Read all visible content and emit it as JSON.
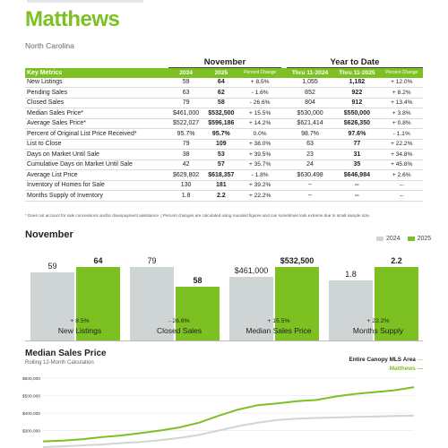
{
  "header": {
    "title": "Matthews",
    "subtitle": "North Carolina"
  },
  "table": {
    "group_month": "November",
    "group_ytd": "Year to Date",
    "col_metric": "Key Metrics",
    "col_2024": "2024",
    "col_2025": "2025",
    "col_pct": "Percent Change",
    "col_thru24": "Thru 11-2024",
    "col_thru25": "Thru 11-2025",
    "col_pct2": "Percent Change",
    "rows": [
      {
        "label": "New Listings",
        "m24": "59",
        "m25": "64",
        "mp": "+ 8.5%",
        "y24": "1,055",
        "y25": "1,182",
        "yp": "+ 12.0%"
      },
      {
        "label": "Pending Sales",
        "m24": "63",
        "m25": "62",
        "mp": "- 1.6%",
        "y24": "852",
        "y25": "922",
        "yp": "+ 8.2%"
      },
      {
        "label": "Closed Sales",
        "m24": "79",
        "m25": "58",
        "mp": "- 26.6%",
        "y24": "804",
        "y25": "912",
        "yp": "+ 13.4%"
      },
      {
        "label": "Median Sales Price*",
        "m24": "$461,000",
        "m25": "$532,500",
        "mp": "+ 15.5%",
        "y24": "$530,000",
        "y25": "$550,000",
        "yp": "+ 3.8%"
      },
      {
        "label": "Average Sales Price*",
        "m24": "$522,027",
        "m25": "$596,186",
        "mp": "+ 14.2%",
        "y24": "$621,414",
        "y25": "$626,350",
        "yp": "+ 0.8%"
      },
      {
        "label": "Percent of Original List Price Received*",
        "m24": "95.7%",
        "m25": "95.7%",
        "mp": "0.0%",
        "y24": "98.7%",
        "y25": "97.6%",
        "yp": "- 1.1%"
      },
      {
        "label": "List to Close",
        "m24": "79",
        "m25": "109",
        "mp": "+ 38.0%",
        "y24": "63",
        "y25": "77",
        "yp": "+ 22.2%"
      },
      {
        "label": "Days on Market Until Sale",
        "m24": "38",
        "m25": "53",
        "mp": "+ 39.5%",
        "y24": "23",
        "y25": "31",
        "yp": "+ 34.8%"
      },
      {
        "label": "Cumulative Days on Market Until Sale",
        "m24": "42",
        "m25": "57",
        "mp": "+ 35.7%",
        "y24": "24",
        "y25": "35",
        "yp": "+ 45.8%"
      },
      {
        "label": "Average List Price",
        "m24": "$629,802",
        "m25": "$618,357",
        "mp": "- 1.8%",
        "y24": "$630,498",
        "y25": "$646,984",
        "yp": "+ 2.6%"
      },
      {
        "label": "Inventory of Homes for Sale",
        "m24": "130",
        "m25": "181",
        "mp": "+ 39.2%",
        "y24": "--",
        "y25": "--",
        "yp": "--"
      },
      {
        "label": "Months Supply of Inventory",
        "m24": "1.8",
        "m25": "2.2",
        "mp": "+ 22.2%",
        "y24": "--",
        "y25": "--",
        "yp": "--"
      }
    ],
    "footnote": "* Does not account for sale concessions and/or downpayment assistance.  |  Percent changes are calculated using rounded figures and can sometimes look extreme due to small sample size."
  },
  "colors": {
    "accent": "#7cc021",
    "prev": "#cfd5d5"
  },
  "bar_section": {
    "title": "November",
    "legend_prev": "2024",
    "legend_cur": "2025",
    "groups": [
      {
        "name": "New Listings",
        "pct": "+ 8.5%",
        "v24": "59",
        "v25": "64"
      },
      {
        "name": "Closed Sales",
        "pct": "- 26.6%",
        "v24": "79",
        "v25": "58"
      },
      {
        "name": "Median Sales Price",
        "pct": "+ 15.5%",
        "v24": "$461,000",
        "v25": "$532,500"
      },
      {
        "name": "Months Supply",
        "pct": "+ 22.2%",
        "v24": "1.8",
        "v25": "2.2"
      }
    ]
  },
  "line_section": {
    "title": "Median Sales Price",
    "subtitle": "Rolling 12-Month Calculation",
    "legend_area": "Entire Canopy MLS Area",
    "legend_city": "Matthews"
  },
  "chart_data": [
    {
      "type": "bar",
      "title": "November",
      "categories": [
        "New Listings",
        "Closed Sales",
        "Median Sales Price",
        "Months Supply"
      ],
      "series": [
        {
          "name": "2024",
          "values": [
            59,
            79,
            461000,
            1.8
          ]
        },
        {
          "name": "2025",
          "values": [
            64,
            58,
            532500,
            2.2
          ]
        }
      ],
      "legend": "top-right"
    },
    {
      "type": "line",
      "title": "Median Sales Price",
      "subtitle": "Rolling 12-Month Calculation",
      "ylim": [
        200000,
        600000
      ],
      "yticks": [
        "$600,000",
        "$500,000",
        "$400,000",
        "$300,000"
      ],
      "grid": true,
      "legend": "top-right",
      "series": [
        {
          "name": "Entire Canopy MLS Area",
          "values": [
            205000,
            210000,
            215000,
            220000,
            228000,
            235000,
            245000,
            258000,
            275000,
            300000,
            325000,
            345000,
            360000,
            368000,
            372000,
            375000,
            378000,
            380000,
            383000,
            385000
          ]
        },
        {
          "name": "Matthews",
          "values": [
            238000,
            242000,
            250000,
            262000,
            272000,
            285000,
            300000,
            318000,
            345000,
            385000,
            420000,
            445000,
            455000,
            468000,
            475000,
            495000,
            510000,
            520000,
            530000,
            548000
          ]
        }
      ]
    }
  ]
}
